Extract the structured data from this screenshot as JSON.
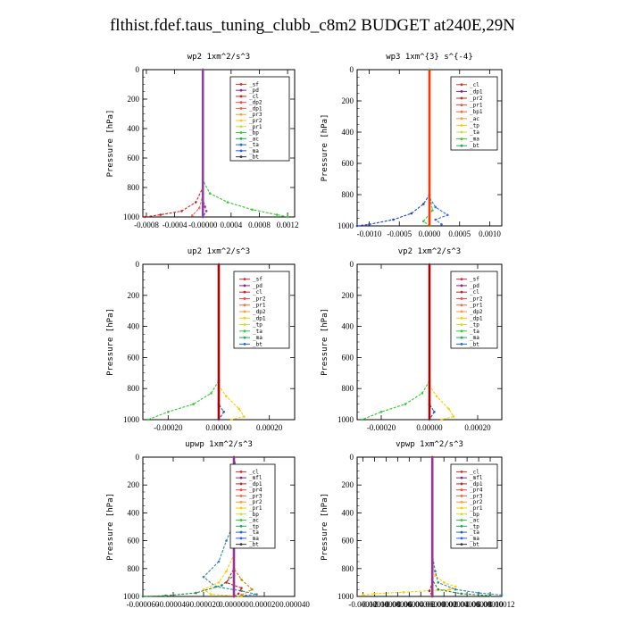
{
  "title": "flthist.fdef.taus_tuning_clubb_c8m2  BUDGET at240E,29N",
  "chart_data": [
    {
      "type": "line",
      "title": "wp2  1xm^2/s^3",
      "ylabel": "Pressure [hPa]",
      "xlim": [
        -0.00085,
        0.0013
      ],
      "ylim": [
        1000,
        0
      ],
      "xticks": [
        -0.0008,
        -0.0004,
        0.0,
        0.0004,
        0.0008,
        0.0012
      ],
      "xtick_labels": [
        "-0.0008",
        "-0.0004",
        "-0.00000",
        "0.0004",
        "0.0008",
        "0.0012"
      ],
      "yticks": [
        0,
        200,
        400,
        600,
        800,
        1000
      ],
      "legend": [
        "_sf",
        "_pd",
        "_cl",
        "_dp2",
        "_dp1",
        "_pr3",
        "_pr2",
        "_pr1",
        "_bp",
        "_ac",
        "_ta",
        "_ma",
        "_bt"
      ],
      "series": [
        {
          "name": "_ac",
          "color": "#33cc33",
          "points": [
            [
              0,
              0
            ],
            [
              0,
              750
            ],
            [
              0.0001,
              840
            ],
            [
              0.00035,
              900
            ],
            [
              0.0007,
              950
            ],
            [
              0.00105,
              985
            ],
            [
              0.0012,
              1000
            ]
          ]
        },
        {
          "name": "_dp1",
          "color": "#cc2222",
          "points": [
            [
              0,
              0
            ],
            [
              0,
              800
            ],
            [
              -0.0001,
              900
            ],
            [
              -0.0003,
              960
            ],
            [
              -0.0006,
              985
            ],
            [
              -0.00082,
              1000
            ]
          ]
        },
        {
          "name": "_dp2",
          "color": "#ff6666",
          "points": [
            [
              0,
              0
            ],
            [
              0,
              850
            ],
            [
              -5e-05,
              940
            ],
            [
              -0.00015,
              990
            ]
          ]
        },
        {
          "name": "_bp",
          "color": "#9933cc",
          "points": [
            [
              0,
              0
            ],
            [
              0,
              880
            ],
            [
              3e-05,
              930
            ],
            [
              5e-05,
              960
            ],
            [
              0,
              1000
            ]
          ]
        },
        {
          "name": "_bt",
          "color": "#884499",
          "points": [
            [
              0,
              0
            ],
            [
              0,
              1000
            ]
          ]
        }
      ]
    },
    {
      "type": "line",
      "title": "wp3  1xm^{3} s^{-4}",
      "ylabel": "Pressure [hPa]",
      "xlim": [
        -0.0012,
        0.0012
      ],
      "ylim": [
        1000,
        0
      ],
      "xticks": [
        -0.001,
        -0.0005,
        0.0,
        0.0005,
        0.001
      ],
      "xtick_labels": [
        "-0.0010",
        "-0.0005",
        "0.0000",
        "0.0005",
        "0.0010"
      ],
      "yticks": [
        0,
        200,
        400,
        600,
        800,
        1000
      ],
      "legend": [
        "_cl",
        "_dp1",
        "_pr2",
        "_pr1",
        "_bp1",
        "_ac",
        "_tp",
        "_ta",
        "_ma",
        "_bt"
      ],
      "series": [
        {
          "name": "_tp",
          "color": "#2244cc",
          "points": [
            [
              0,
              0
            ],
            [
              0,
              800
            ],
            [
              -0.0001,
              860
            ],
            [
              -0.0003,
              920
            ],
            [
              -0.0006,
              960
            ],
            [
              -0.001,
              990
            ],
            [
              -0.0012,
              1000
            ]
          ]
        },
        {
          "name": "_ta",
          "color": "#3366ff",
          "points": [
            [
              0,
              0
            ],
            [
              0,
              820
            ],
            [
              0.0001,
              880
            ],
            [
              0.0003,
              930
            ],
            [
              0.0001,
              960
            ],
            [
              0.0002,
              990
            ]
          ]
        },
        {
          "name": "_ac",
          "color": "#33cc33",
          "points": [
            [
              0,
              0
            ],
            [
              0,
              800
            ],
            [
              5e-05,
              900
            ],
            [
              -0.0001,
              970
            ],
            [
              0,
              1000
            ]
          ]
        },
        {
          "name": "_bt",
          "color": "#ff3300",
          "points": [
            [
              0,
              0
            ],
            [
              0,
              1000
            ]
          ]
        }
      ]
    },
    {
      "type": "line",
      "title": "up2  1xm^2/s^3",
      "ylabel": "Pressure [hPa]",
      "xlim": [
        -0.0003,
        0.0003
      ],
      "ylim": [
        1000,
        0
      ],
      "xticks": [
        -0.0002,
        0.0,
        0.0002
      ],
      "xtick_labels": [
        "-0.00020",
        "0.00000",
        "0.00020"
      ],
      "yticks": [
        0,
        200,
        400,
        600,
        800,
        1000
      ],
      "legend": [
        "_sf",
        "_pd",
        "_cl",
        "_pr2",
        "_pr1",
        "_dp2",
        "_dp1",
        "_tp",
        "_ta",
        "_ma",
        "_bt"
      ],
      "series": [
        {
          "name": "_dp1",
          "color": "#33cc33",
          "points": [
            [
              0,
              0
            ],
            [
              0,
              750
            ],
            [
              -3e-05,
              830
            ],
            [
              -0.0001,
              900
            ],
            [
              -0.0002,
              950
            ],
            [
              -0.00028,
              1000
            ]
          ]
        },
        {
          "name": "_pr1",
          "color": "#ffcc00",
          "points": [
            [
              0,
              0
            ],
            [
              0,
              780
            ],
            [
              3e-05,
              850
            ],
            [
              8e-05,
              930
            ],
            [
              0.0001,
              980
            ],
            [
              5e-05,
              1000
            ]
          ]
        },
        {
          "name": "_tp",
          "color": "#2255cc",
          "points": [
            [
              0,
              0
            ],
            [
              0,
              900
            ],
            [
              2e-05,
              950
            ],
            [
              0,
              1000
            ]
          ]
        },
        {
          "name": "_bt",
          "color": "#aa0000",
          "points": [
            [
              0,
              0
            ],
            [
              0,
              1000
            ]
          ]
        }
      ]
    },
    {
      "type": "line",
      "title": "vp2  1xm^2/s^3",
      "ylabel": "Pressure [hPa]",
      "xlim": [
        -0.0003,
        0.0003
      ],
      "ylim": [
        1000,
        0
      ],
      "xticks": [
        -0.0002,
        0.0,
        0.0002
      ],
      "xtick_labels": [
        "-0.00020",
        "0.00000",
        "0.00020"
      ],
      "yticks": [
        0,
        200,
        400,
        600,
        800,
        1000
      ],
      "legend": [
        "_sf",
        "_pd",
        "_cl",
        "_pr2",
        "_pr1",
        "_dp2",
        "_dp1",
        "_tp",
        "_ta",
        "_ma",
        "_bt"
      ],
      "series": [
        {
          "name": "_dp1",
          "color": "#33cc33",
          "points": [
            [
              0,
              0
            ],
            [
              0,
              750
            ],
            [
              -3e-05,
              830
            ],
            [
              -0.0001,
              900
            ],
            [
              -0.0002,
              950
            ],
            [
              -0.00028,
              1000
            ]
          ]
        },
        {
          "name": "_pr1",
          "color": "#ffcc00",
          "points": [
            [
              0,
              0
            ],
            [
              0,
              780
            ],
            [
              3e-05,
              850
            ],
            [
              8e-05,
              930
            ],
            [
              0.0001,
              980
            ],
            [
              5e-05,
              1000
            ]
          ]
        },
        {
          "name": "_tp",
          "color": "#2255cc",
          "points": [
            [
              0,
              0
            ],
            [
              0,
              900
            ],
            [
              2e-05,
              950
            ],
            [
              0,
              1000
            ]
          ]
        },
        {
          "name": "_bt",
          "color": "#aa0000",
          "points": [
            [
              0,
              0
            ],
            [
              0,
              1000
            ]
          ]
        }
      ]
    },
    {
      "type": "line",
      "title": "upwp  1xm^2/s^3",
      "ylabel": "Pressure [hPa]",
      "xlim": [
        -6e-05,
        4e-05
      ],
      "ylim": [
        1000,
        0
      ],
      "xticks": [
        -6e-05,
        -4e-05,
        -2e-05,
        0.0,
        2e-05,
        4e-05
      ],
      "xtick_labels": [
        "-0.000060",
        "-0.000040",
        "-0.000020",
        "0.000000",
        "0.000020",
        "0.000040"
      ],
      "yticks": [
        0,
        200,
        400,
        600,
        800,
        1000
      ],
      "legend": [
        "_cl",
        "_mfl",
        "_dp1",
        "_pr4",
        "_pr3",
        "_pr2",
        "_pr1",
        "_bp",
        "_ac",
        "_tp",
        "_ta",
        "_ma",
        "_bt"
      ],
      "series": [
        {
          "name": "_tp",
          "color": "#3388aa",
          "points": [
            [
              0,
              0
            ],
            [
              2e-06,
              100
            ],
            [
              3e-06,
              400
            ],
            [
              -5e-06,
              600
            ],
            [
              -1e-05,
              750
            ],
            [
              -2e-05,
              860
            ],
            [
              -1.2e-05,
              930
            ],
            [
              5e-06,
              960
            ],
            [
              1.5e-05,
              985
            ],
            [
              0,
              1000
            ]
          ]
        },
        {
          "name": "_pr1",
          "color": "#ffcc00",
          "points": [
            [
              0,
              0
            ],
            [
              0,
              700
            ],
            [
              -5e-06,
              820
            ],
            [
              -1e-05,
              900
            ],
            [
              -2e-05,
              950
            ],
            [
              -1.5e-05,
              985
            ],
            [
              5e-06,
              1000
            ]
          ]
        },
        {
          "name": "_pr2",
          "color": "#cc8800",
          "points": [
            [
              0,
              0
            ],
            [
              0,
              800
            ],
            [
              5e-06,
              880
            ],
            [
              1.2e-05,
              950
            ],
            [
              5e-06,
              990
            ]
          ]
        },
        {
          "name": "_ac",
          "color": "#228833",
          "points": [
            [
              0,
              0
            ],
            [
              0,
              850
            ],
            [
              -8e-06,
              920
            ],
            [
              -2.5e-05,
              975
            ],
            [
              -4.5e-05,
              995
            ],
            [
              -6e-05,
              1000
            ]
          ]
        },
        {
          "name": "_dp1",
          "color": "#cc2222",
          "points": [
            [
              0,
              0
            ],
            [
              0,
              800
            ],
            [
              -5e-06,
              900
            ],
            [
              5e-06,
              940
            ],
            [
              3e-06,
              980
            ],
            [
              0,
              1000
            ]
          ]
        },
        {
          "name": "_bt",
          "color": "#993399",
          "points": [
            [
              0,
              0
            ],
            [
              0,
              1000
            ]
          ]
        }
      ]
    },
    {
      "type": "line",
      "title": "vpwp  1xm^2/s^3",
      "ylabel": "Pressure [hPa]",
      "xlim": [
        -0.00013,
        0.00012
      ],
      "ylim": [
        1000,
        0
      ],
      "xticks": [
        -0.00012,
        -0.0001,
        -8e-05,
        -6e-05,
        -4e-05,
        -2e-05,
        0.0,
        2e-05,
        4e-05,
        6e-05,
        8e-05,
        0.0001,
        0.00012
      ],
      "xtick_labels": [
        "-0.00012",
        "-0.00010",
        "-0.00008",
        "-0.00006",
        "-0.00004",
        "-0.00002",
        "0.00000",
        "0.00002",
        "0.00004",
        "0.00006",
        "0.00008",
        "0.00010",
        "0.00012"
      ],
      "yticks": [
        0,
        200,
        400,
        600,
        800,
        1000
      ],
      "legend": [
        "_cl",
        "_mfl",
        "_dp1",
        "_pr4",
        "_pr3",
        "_pr2",
        "_pr1",
        "_bp",
        "_ac",
        "_tp",
        "_ta",
        "_ma",
        "_bt"
      ],
      "series": [
        {
          "name": "_pr1",
          "color": "#ffcc00",
          "points": [
            [
              0,
              0
            ],
            [
              0,
              750
            ],
            [
              5e-06,
              850
            ],
            [
              2e-05,
              900
            ],
            [
              4e-05,
              930
            ],
            [
              3e-05,
              950
            ],
            [
              -5e-05,
              970
            ],
            [
              -0.0001,
              980
            ],
            [
              -0.00012,
              990
            ]
          ]
        },
        {
          "name": "_tp",
          "color": "#3388aa",
          "points": [
            [
              0,
              0
            ],
            [
              0,
              700
            ],
            [
              5e-06,
              820
            ],
            [
              1e-05,
              900
            ],
            [
              4e-05,
              950
            ],
            [
              8e-05,
              975
            ],
            [
              0.00012,
              990
            ]
          ]
        },
        {
          "name": "_ac",
          "color": "#228833",
          "points": [
            [
              0,
              0
            ],
            [
              0,
              880
            ],
            [
              1e-05,
              950
            ],
            [
              5e-05,
              980
            ],
            [
              0.0001,
              995
            ]
          ]
        },
        {
          "name": "_dp1",
          "color": "#cc2222",
          "points": [
            [
              0,
              0
            ],
            [
              0,
              900
            ],
            [
              -5e-06,
              960
            ],
            [
              0,
              1000
            ]
          ]
        },
        {
          "name": "_bt",
          "color": "#993399",
          "points": [
            [
              0,
              0
            ],
            [
              0,
              1000
            ]
          ]
        }
      ]
    }
  ]
}
